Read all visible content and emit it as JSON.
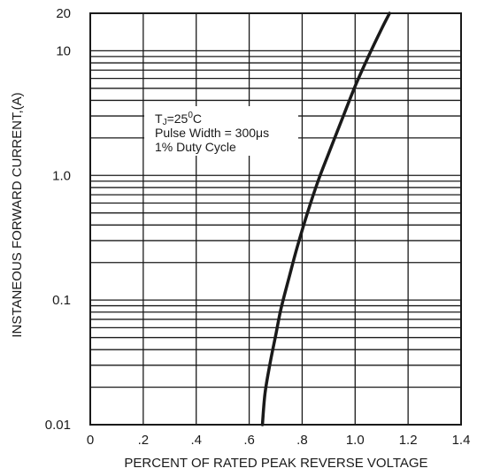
{
  "chart_data": {
    "type": "line",
    "title": "",
    "xlabel": "PERCENT OF RATED PEAK REVERSE VOLTAGE",
    "ylabel": "INSTANEOUS FORWARD CURRENT,(A)",
    "x_scale": "linear",
    "y_scale": "log",
    "xlim": [
      0,
      1.4
    ],
    "ylim": [
      0.01,
      20
    ],
    "x_ticks": [
      {
        "value": 0,
        "label": "0"
      },
      {
        "value": 0.2,
        "label": ".2"
      },
      {
        "value": 0.4,
        "label": ".4"
      },
      {
        "value": 0.6,
        "label": ".6"
      },
      {
        "value": 0.8,
        "label": ".8"
      },
      {
        "value": 1.0,
        "label": "1.0"
      },
      {
        "value": 1.2,
        "label": "1.2"
      },
      {
        "value": 1.4,
        "label": "1.4"
      }
    ],
    "y_ticks": [
      {
        "value": 0.01,
        "label": "0.01"
      },
      {
        "value": 0.1,
        "label": "0.1"
      },
      {
        "value": 1.0,
        "label": "1.0"
      },
      {
        "value": 10,
        "label": "10"
      },
      {
        "value": 20,
        "label": "20"
      }
    ],
    "grid": true,
    "annotation": {
      "line1_main": "T",
      "line1_sub": "J",
      "line1_rest": "=25",
      "line1_sup": "0",
      "line1_unit": "C",
      "line2": "Pulse Width = 300μs",
      "line3": "1% Duty Cycle"
    },
    "series": [
      {
        "x": [
          0.65,
          0.66,
          0.68,
          0.7,
          0.72,
          0.75,
          0.78,
          0.82,
          0.86,
          0.9,
          0.95,
          1.0,
          1.05,
          1.1,
          1.13
        ],
        "y": [
          0.01,
          0.018,
          0.032,
          0.052,
          0.085,
          0.15,
          0.26,
          0.5,
          0.9,
          1.5,
          2.8,
          5.2,
          9.0,
          15.0,
          20.0
        ]
      }
    ]
  }
}
